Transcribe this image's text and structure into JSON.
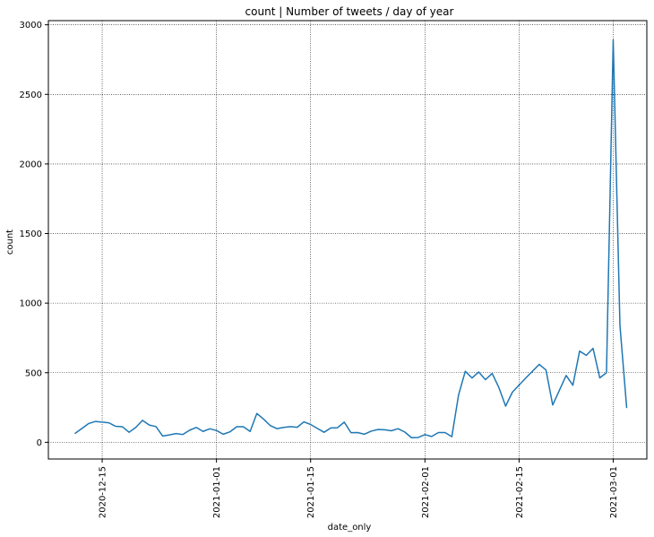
{
  "chart_data": {
    "type": "line",
    "title": "count | Number of tweets / day of year",
    "xlabel": "date_only",
    "ylabel": "count",
    "x_axis_type": "date",
    "xlim": [
      "2020-12-07",
      "2021-03-06"
    ],
    "ylim": [
      -120,
      3030
    ],
    "x_ticks": [
      "2020-12-15",
      "2021-01-01",
      "2021-01-15",
      "2021-02-01",
      "2021-02-15",
      "2021-03-01"
    ],
    "y_ticks": [
      0,
      500,
      1000,
      1500,
      2000,
      2500,
      3000
    ],
    "grid": true,
    "grid_style": "dotted",
    "line_color": "#1f77b4",
    "series": [
      {
        "x": [
          "2020-12-11",
          "2020-12-12",
          "2020-12-13",
          "2020-12-14",
          "2020-12-15",
          "2020-12-16",
          "2020-12-17",
          "2020-12-18",
          "2020-12-19",
          "2020-12-20",
          "2020-12-21",
          "2020-12-22",
          "2020-12-23",
          "2020-12-24",
          "2020-12-25",
          "2020-12-26",
          "2020-12-27",
          "2020-12-28",
          "2020-12-29",
          "2020-12-30",
          "2020-12-31",
          "2021-01-01",
          "2021-01-02",
          "2021-01-03",
          "2021-01-04",
          "2021-01-05",
          "2021-01-06",
          "2021-01-07",
          "2021-01-08",
          "2021-01-09",
          "2021-01-10",
          "2021-01-11",
          "2021-01-12",
          "2021-01-13",
          "2021-01-14",
          "2021-01-15",
          "2021-01-16",
          "2021-01-17",
          "2021-01-18",
          "2021-01-19",
          "2021-01-20",
          "2021-01-21",
          "2021-01-22",
          "2021-01-23",
          "2021-01-24",
          "2021-01-25",
          "2021-01-26",
          "2021-01-27",
          "2021-01-28",
          "2021-01-29",
          "2021-01-30",
          "2021-01-31",
          "2021-02-01",
          "2021-02-02",
          "2021-02-03",
          "2021-02-04",
          "2021-02-05",
          "2021-02-06",
          "2021-02-07",
          "2021-02-08",
          "2021-02-09",
          "2021-02-10",
          "2021-02-11",
          "2021-02-12",
          "2021-02-13",
          "2021-02-14",
          "2021-02-16",
          "2021-02-18",
          "2021-02-19",
          "2021-02-20",
          "2021-02-22",
          "2021-02-23",
          "2021-02-24",
          "2021-02-25",
          "2021-02-26",
          "2021-02-27",
          "2021-02-28",
          "2021-03-01",
          "2021-03-02",
          "2021-03-03"
        ],
        "values": [
          65,
          100,
          135,
          150,
          145,
          140,
          115,
          112,
          72,
          107,
          158,
          124,
          113,
          45,
          53,
          63,
          56,
          87,
          107,
          78,
          97,
          85,
          58,
          75,
          112,
          112,
          78,
          207,
          167,
          120,
          98,
          107,
          113,
          108,
          147,
          128,
          100,
          72,
          103,
          105,
          145,
          69,
          70,
          58,
          80,
          92,
          90,
          83,
          98,
          74,
          33,
          35,
          55,
          42,
          70,
          70,
          40,
          340,
          510,
          462,
          505,
          450,
          495,
          393,
          260,
          360,
          462,
          560,
          520,
          268,
          480,
          410,
          655,
          625,
          675,
          463,
          500,
          2890,
          840,
          250
        ]
      }
    ]
  }
}
